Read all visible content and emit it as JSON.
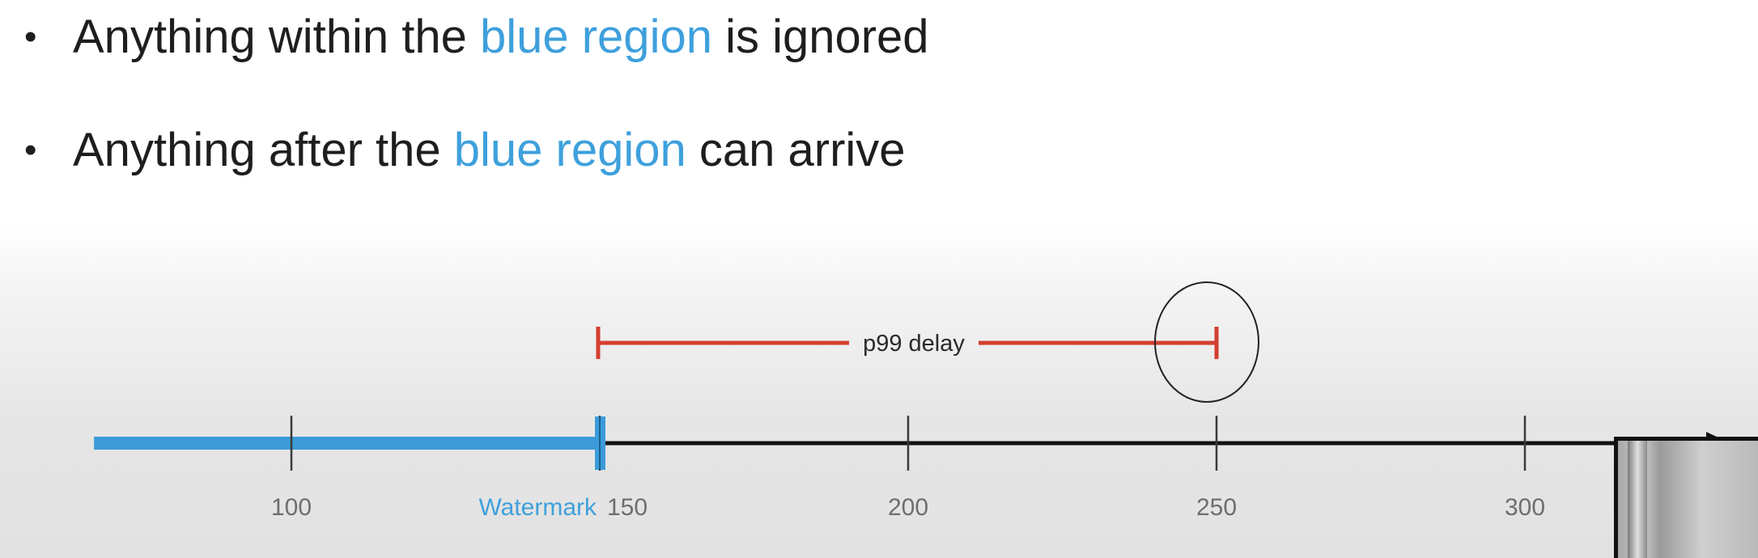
{
  "bullets": [
    {
      "before": "Anything within the ",
      "highlight": "blue region",
      "after": " is ignored"
    },
    {
      "before": "Anything  after  the ",
      "highlight": "blue region",
      "after": " can arrive"
    }
  ],
  "colors": {
    "highlight": "#3ea0dc",
    "ignored_region": "#3b9bd8",
    "delay_bar": "#d43f2f",
    "axis": "#111111"
  },
  "chart_data": {
    "type": "timeline",
    "x_range": [
      68,
      334
    ],
    "ticks": [
      100,
      150,
      200,
      250,
      300
    ],
    "tick_labels": [
      "100",
      "150",
      "200",
      "250",
      "300"
    ],
    "watermark": {
      "label": "Watermark",
      "value": 150
    },
    "ignored_region": {
      "from": 68,
      "to": 150
    },
    "p99_delay": {
      "label": "p99 delay",
      "from": 150,
      "to": 250
    },
    "highlight_circle_at": 250
  }
}
